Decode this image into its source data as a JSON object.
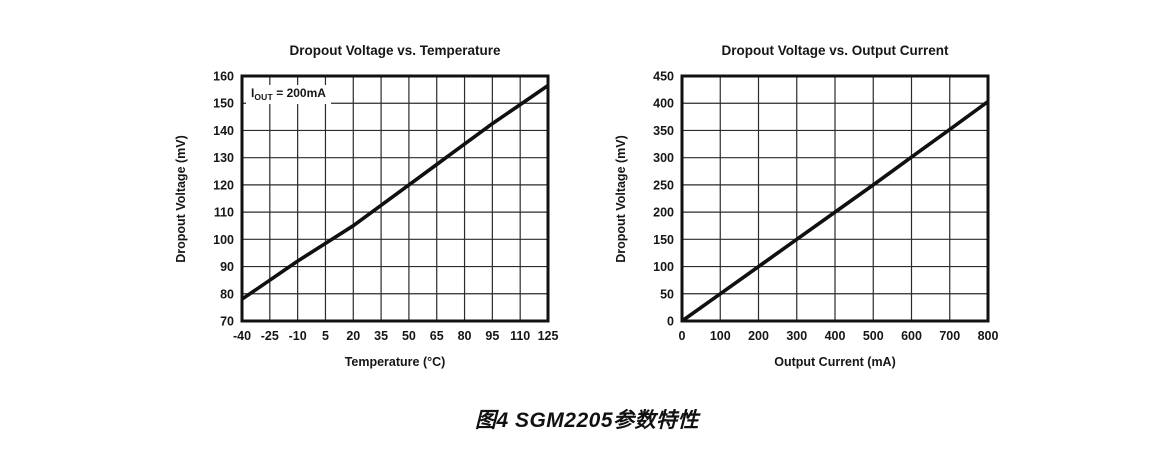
{
  "page": {
    "background": "#ffffff",
    "caption": "图4 SGM2205参数特性"
  },
  "colors": {
    "ink": "#161616",
    "grid": "#2b2b2b",
    "border": "#111111",
    "curve": "#101010"
  },
  "chart_data": [
    {
      "type": "line",
      "title": "Dropout Voltage vs. Temperature",
      "xlabel": "Temperature (°C)",
      "ylabel": "Dropout Voltage (mV)",
      "xlim": [
        -40,
        125
      ],
      "ylim": [
        70,
        160
      ],
      "x_ticks": [
        -40,
        -25,
        -10,
        5,
        20,
        35,
        50,
        65,
        80,
        95,
        110,
        125
      ],
      "y_ticks": [
        70,
        80,
        90,
        100,
        110,
        120,
        130,
        140,
        150,
        160
      ],
      "grid": true,
      "legend": "none",
      "annotation": {
        "base": "I",
        "sub": "OUT",
        "rest": " = 200mA"
      },
      "series": [
        {
          "name": "dropout_voltage_200mA",
          "x": [
            -40,
            -25,
            -10,
            5,
            20,
            35,
            50,
            65,
            80,
            95,
            110,
            125
          ],
          "y": [
            78,
            85,
            92,
            98.5,
            105,
            112.5,
            120,
            127.5,
            135,
            142.5,
            149.5,
            156.5
          ]
        }
      ]
    },
    {
      "type": "line",
      "title": "Dropout Voltage vs. Output Current",
      "xlabel": "Output Current (mA)",
      "ylabel": "Dropout Voltage (mV)",
      "xlim": [
        0,
        800
      ],
      "ylim": [
        0,
        450
      ],
      "x_ticks": [
        0,
        100,
        200,
        300,
        400,
        500,
        600,
        700,
        800
      ],
      "y_ticks": [
        0,
        50,
        100,
        150,
        200,
        250,
        300,
        350,
        400,
        450
      ],
      "grid": true,
      "legend": "none",
      "series": [
        {
          "name": "dropout_voltage_vs_current",
          "x": [
            0,
            100,
            200,
            300,
            400,
            500,
            600,
            700,
            800
          ],
          "y": [
            0,
            50,
            100,
            150,
            200,
            250,
            301,
            352,
            403
          ]
        }
      ]
    }
  ]
}
